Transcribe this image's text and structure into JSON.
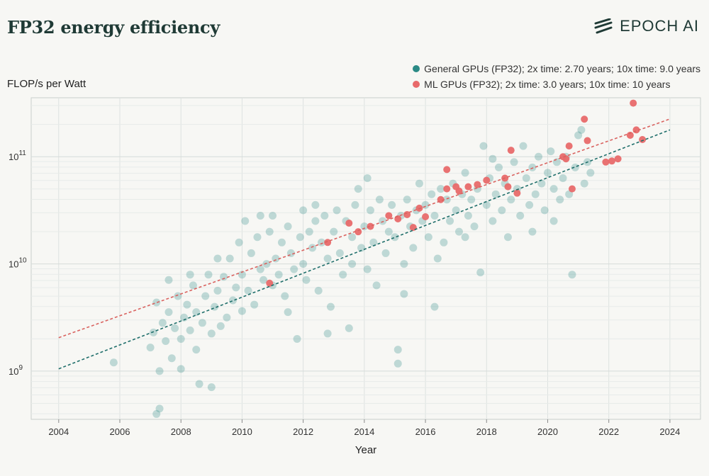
{
  "title": "FP32 energy efficiency",
  "brand": {
    "name": "EPOCH AI",
    "icon": "epoch-stripes-icon"
  },
  "chart_data": {
    "type": "scatter",
    "title": "FP32 energy efficiency",
    "xlabel": "Year",
    "ylabel": "FLOP/s per Watt",
    "yscale": "log",
    "xlim": [
      2003.1,
      2025
    ],
    "ylim_log10": [
      8.55,
      11.55
    ],
    "x_ticks": [
      "2004",
      "2006",
      "2008",
      "2010",
      "2012",
      "2014",
      "2016",
      "2018",
      "2020",
      "2022",
      "2024"
    ],
    "y_ticks": [
      {
        "value": 1000000000.0,
        "base": "10",
        "exp": "9"
      },
      {
        "value": 10000000000.0,
        "base": "10",
        "exp": "10"
      },
      {
        "value": 100000000000.0,
        "base": "10",
        "exp": "11"
      }
    ],
    "grid": true,
    "legend_position": "top-right",
    "series": [
      {
        "name": "General GPUs (FP32); 2x time: 2.70 years; 10x time: 9.0 years",
        "color": "#2a8a85",
        "trend": {
          "x": [
            2004,
            2024
          ],
          "y": [
            1050000000.0,
            178000000000.0
          ]
        },
        "points": [
          [
            2005.8,
            9.08
          ],
          [
            2007.0,
            9.22
          ],
          [
            2007.1,
            9.36
          ],
          [
            2007.2,
            9.64
          ],
          [
            2007.2,
            8.6
          ],
          [
            2007.3,
            8.65
          ],
          [
            2007.3,
            9.0
          ],
          [
            2007.4,
            9.45
          ],
          [
            2007.5,
            9.28
          ],
          [
            2007.6,
            9.55
          ],
          [
            2007.7,
            9.12
          ],
          [
            2007.8,
            9.4
          ],
          [
            2007.9,
            9.7
          ],
          [
            2008.0,
            9.3
          ],
          [
            2008.0,
            9.02
          ],
          [
            2008.1,
            9.5
          ],
          [
            2008.2,
            9.62
          ],
          [
            2008.3,
            9.38
          ],
          [
            2008.4,
            9.8
          ],
          [
            2008.5,
            9.2
          ],
          [
            2008.5,
            9.55
          ],
          [
            2008.6,
            8.88
          ],
          [
            2008.7,
            9.45
          ],
          [
            2008.8,
            9.7
          ],
          [
            2008.9,
            9.9
          ],
          [
            2009.0,
            9.35
          ],
          [
            2009.0,
            8.85
          ],
          [
            2009.1,
            9.6
          ],
          [
            2009.2,
            9.75
          ],
          [
            2009.3,
            9.42
          ],
          [
            2009.4,
            9.88
          ],
          [
            2009.5,
            9.5
          ],
          [
            2009.6,
            10.05
          ],
          [
            2009.7,
            9.66
          ],
          [
            2009.8,
            9.78
          ],
          [
            2009.9,
            10.2
          ],
          [
            2010.0,
            9.56
          ],
          [
            2010.0,
            9.9
          ],
          [
            2010.1,
            10.4
          ],
          [
            2010.2,
            9.75
          ],
          [
            2010.3,
            10.1
          ],
          [
            2010.4,
            9.62
          ],
          [
            2010.5,
            10.25
          ],
          [
            2010.6,
            9.95
          ],
          [
            2010.7,
            9.85
          ],
          [
            2010.8,
            10.0
          ],
          [
            2010.9,
            10.3
          ],
          [
            2011.0,
            9.8
          ],
          [
            2011.0,
            10.45
          ],
          [
            2011.1,
            10.05
          ],
          [
            2011.2,
            9.9
          ],
          [
            2011.3,
            10.2
          ],
          [
            2011.4,
            9.7
          ],
          [
            2011.5,
            10.35
          ],
          [
            2011.6,
            10.1
          ],
          [
            2011.7,
            9.95
          ],
          [
            2011.8,
            9.3
          ],
          [
            2011.9,
            10.25
          ],
          [
            2012.0,
            10.5
          ],
          [
            2012.0,
            10.0
          ],
          [
            2012.1,
            9.85
          ],
          [
            2012.2,
            10.3
          ],
          [
            2012.3,
            10.15
          ],
          [
            2012.4,
            10.4
          ],
          [
            2012.5,
            9.75
          ],
          [
            2012.6,
            10.2
          ],
          [
            2012.7,
            10.45
          ],
          [
            2012.8,
            10.05
          ],
          [
            2012.9,
            9.6
          ],
          [
            2013.0,
            10.3
          ],
          [
            2013.1,
            10.5
          ],
          [
            2013.2,
            10.1
          ],
          [
            2013.3,
            9.9
          ],
          [
            2013.4,
            10.4
          ],
          [
            2013.5,
            9.4
          ],
          [
            2013.6,
            10.25
          ],
          [
            2013.7,
            10.55
          ],
          [
            2013.8,
            10.7
          ],
          [
            2013.9,
            10.15
          ],
          [
            2014.0,
            10.35
          ],
          [
            2014.1,
            9.95
          ],
          [
            2014.2,
            10.5
          ],
          [
            2014.3,
            10.2
          ],
          [
            2014.4,
            9.8
          ],
          [
            2014.5,
            10.6
          ],
          [
            2014.6,
            10.4
          ],
          [
            2014.7,
            10.1
          ],
          [
            2014.8,
            10.3
          ],
          [
            2014.9,
            10.55
          ],
          [
            2015.0,
            10.25
          ],
          [
            2015.1,
            9.07
          ],
          [
            2015.1,
            9.2
          ],
          [
            2015.2,
            10.45
          ],
          [
            2015.3,
            10.0
          ],
          [
            2015.4,
            10.6
          ],
          [
            2015.5,
            10.35
          ],
          [
            2015.6,
            10.15
          ],
          [
            2015.7,
            10.5
          ],
          [
            2015.8,
            10.75
          ],
          [
            2015.9,
            10.4
          ],
          [
            2016.0,
            10.55
          ],
          [
            2016.1,
            10.25
          ],
          [
            2016.2,
            10.65
          ],
          [
            2016.3,
            10.45
          ],
          [
            2016.4,
            10.05
          ],
          [
            2016.5,
            10.7
          ],
          [
            2016.6,
            10.2
          ],
          [
            2016.7,
            10.6
          ],
          [
            2016.8,
            10.4
          ],
          [
            2016.9,
            10.75
          ],
          [
            2017.0,
            10.5
          ],
          [
            2017.1,
            10.3
          ],
          [
            2017.2,
            10.65
          ],
          [
            2017.3,
            10.85
          ],
          [
            2017.4,
            10.45
          ],
          [
            2017.5,
            10.6
          ],
          [
            2017.6,
            10.35
          ],
          [
            2017.7,
            10.7
          ],
          [
            2017.8,
            9.92
          ],
          [
            2017.9,
            11.1
          ],
          [
            2018.0,
            10.55
          ],
          [
            2018.1,
            10.8
          ],
          [
            2018.2,
            10.4
          ],
          [
            2018.3,
            10.65
          ],
          [
            2018.4,
            10.9
          ],
          [
            2018.5,
            10.5
          ],
          [
            2018.6,
            10.75
          ],
          [
            2018.7,
            10.25
          ],
          [
            2018.8,
            10.6
          ],
          [
            2018.9,
            10.95
          ],
          [
            2019.0,
            10.7
          ],
          [
            2019.1,
            10.45
          ],
          [
            2019.2,
            11.1
          ],
          [
            2019.3,
            10.8
          ],
          [
            2019.4,
            10.55
          ],
          [
            2019.5,
            10.9
          ],
          [
            2019.6,
            10.65
          ],
          [
            2019.7,
            11.0
          ],
          [
            2019.8,
            10.75
          ],
          [
            2019.9,
            10.5
          ],
          [
            2020.0,
            10.85
          ],
          [
            2020.1,
            11.05
          ],
          [
            2020.2,
            10.7
          ],
          [
            2020.3,
            10.95
          ],
          [
            2020.4,
            10.6
          ],
          [
            2020.5,
            10.8
          ],
          [
            2020.6,
            11.0
          ],
          [
            2020.7,
            10.65
          ],
          [
            2020.8,
            9.9
          ],
          [
            2020.9,
            10.9
          ],
          [
            2021.0,
            11.2
          ],
          [
            2021.1,
            11.25
          ],
          [
            2021.2,
            10.75
          ],
          [
            2021.3,
            10.95
          ],
          [
            2021.4,
            10.85
          ],
          [
            2008.3,
            9.9
          ],
          [
            2009.2,
            10.05
          ],
          [
            2010.6,
            10.45
          ],
          [
            2012.4,
            10.55
          ],
          [
            2013.6,
            10.0
          ],
          [
            2014.1,
            10.8
          ],
          [
            2015.3,
            9.72
          ],
          [
            2016.3,
            9.6
          ],
          [
            2017.3,
            10.25
          ],
          [
            2018.2,
            10.98
          ],
          [
            2019.5,
            10.3
          ],
          [
            2020.2,
            10.4
          ],
          [
            2007.6,
            9.85
          ],
          [
            2011.5,
            9.55
          ],
          [
            2012.8,
            9.35
          ]
        ]
      },
      {
        "name": "ML GPUs (FP32); 2x time: 3.0 years; 10x time: 10 years",
        "color": "#e86a6a",
        "trend": {
          "x": [
            2004,
            2024
          ],
          "y": [
            2050000000.0,
            225000000000.0
          ]
        },
        "points": [
          [
            2010.9,
            9.82
          ],
          [
            2012.8,
            10.2
          ],
          [
            2013.5,
            10.38
          ],
          [
            2013.8,
            10.3
          ],
          [
            2014.2,
            10.35
          ],
          [
            2014.8,
            10.45
          ],
          [
            2015.1,
            10.42
          ],
          [
            2015.4,
            10.46
          ],
          [
            2015.6,
            10.34
          ],
          [
            2015.8,
            10.52
          ],
          [
            2016.0,
            10.44
          ],
          [
            2016.5,
            10.6
          ],
          [
            2016.7,
            10.7
          ],
          [
            2016.7,
            10.88
          ],
          [
            2017.0,
            10.72
          ],
          [
            2017.1,
            10.68
          ],
          [
            2017.4,
            10.72
          ],
          [
            2017.7,
            10.74
          ],
          [
            2018.0,
            10.78
          ],
          [
            2018.6,
            10.8
          ],
          [
            2018.7,
            10.72
          ],
          [
            2018.8,
            11.06
          ],
          [
            2019.0,
            10.66
          ],
          [
            2020.5,
            11.0
          ],
          [
            2020.6,
            10.98
          ],
          [
            2020.7,
            11.1
          ],
          [
            2020.8,
            10.7
          ],
          [
            2021.2,
            11.35
          ],
          [
            2021.3,
            11.15
          ],
          [
            2021.9,
            10.95
          ],
          [
            2022.1,
            10.96
          ],
          [
            2022.3,
            10.98
          ],
          [
            2022.7,
            11.2
          ],
          [
            2022.8,
            11.5
          ],
          [
            2022.9,
            11.25
          ],
          [
            2023.1,
            11.16
          ]
        ]
      }
    ]
  }
}
